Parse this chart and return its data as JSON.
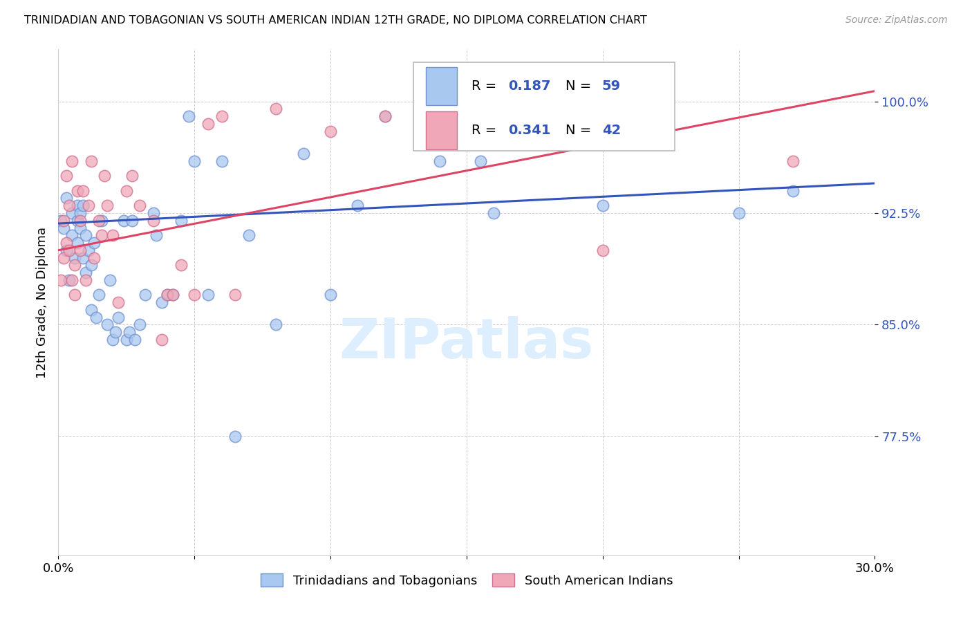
{
  "title": "TRINIDADIAN AND TOBAGONIAN VS SOUTH AMERICAN INDIAN 12TH GRADE, NO DIPLOMA CORRELATION CHART",
  "source": "Source: ZipAtlas.com",
  "ylabel": "12th Grade, No Diploma",
  "xlim": [
    0.0,
    0.3
  ],
  "ylim": [
    0.695,
    1.035
  ],
  "yticks": [
    0.775,
    0.85,
    0.925,
    1.0
  ],
  "ytick_labels": [
    "77.5%",
    "85.0%",
    "92.5%",
    "100.0%"
  ],
  "xticks": [
    0.0,
    0.05,
    0.1,
    0.15,
    0.2,
    0.25,
    0.3
  ],
  "xtick_labels": [
    "0.0%",
    "",
    "",
    "",
    "",
    "",
    "30.0%"
  ],
  "legend_blue_R": "0.187",
  "legend_blue_N": "59",
  "legend_pink_R": "0.341",
  "legend_pink_N": "42",
  "legend_label_blue": "Trinidadians and Tobagonians",
  "legend_label_pink": "South American Indians",
  "blue_color": "#a8c8f0",
  "pink_color": "#f0a8b8",
  "blue_edge_color": "#7090d0",
  "pink_edge_color": "#d07090",
  "blue_line_color": "#3355bb",
  "pink_line_color": "#dd4466",
  "label_color": "#3355bb",
  "watermark_color": "#ddeeff",
  "blue_scatter_x": [
    0.001,
    0.002,
    0.003,
    0.003,
    0.004,
    0.005,
    0.005,
    0.006,
    0.007,
    0.007,
    0.007,
    0.008,
    0.008,
    0.009,
    0.009,
    0.01,
    0.01,
    0.011,
    0.012,
    0.012,
    0.013,
    0.014,
    0.015,
    0.016,
    0.018,
    0.019,
    0.02,
    0.021,
    0.022,
    0.024,
    0.025,
    0.026,
    0.027,
    0.028,
    0.03,
    0.032,
    0.035,
    0.036,
    0.038,
    0.04,
    0.042,
    0.045,
    0.048,
    0.05,
    0.055,
    0.06,
    0.065,
    0.07,
    0.08,
    0.09,
    0.1,
    0.11,
    0.12,
    0.14,
    0.155,
    0.16,
    0.2,
    0.25,
    0.27
  ],
  "blue_scatter_y": [
    0.92,
    0.915,
    0.9,
    0.935,
    0.88,
    0.925,
    0.91,
    0.895,
    0.93,
    0.92,
    0.905,
    0.915,
    0.925,
    0.93,
    0.895,
    0.91,
    0.885,
    0.9,
    0.89,
    0.86,
    0.905,
    0.855,
    0.87,
    0.92,
    0.85,
    0.88,
    0.84,
    0.845,
    0.855,
    0.92,
    0.84,
    0.845,
    0.92,
    0.84,
    0.85,
    0.87,
    0.925,
    0.91,
    0.865,
    0.87,
    0.87,
    0.92,
    0.99,
    0.96,
    0.87,
    0.96,
    0.775,
    0.91,
    0.85,
    0.965,
    0.87,
    0.93,
    0.99,
    0.96,
    0.96,
    0.925,
    0.93,
    0.925,
    0.94
  ],
  "pink_scatter_x": [
    0.001,
    0.002,
    0.002,
    0.003,
    0.003,
    0.004,
    0.004,
    0.005,
    0.005,
    0.006,
    0.006,
    0.007,
    0.008,
    0.008,
    0.009,
    0.01,
    0.011,
    0.012,
    0.013,
    0.015,
    0.016,
    0.017,
    0.018,
    0.02,
    0.022,
    0.025,
    0.027,
    0.03,
    0.035,
    0.038,
    0.04,
    0.042,
    0.045,
    0.05,
    0.055,
    0.06,
    0.065,
    0.08,
    0.1,
    0.12,
    0.2,
    0.27
  ],
  "pink_scatter_y": [
    0.88,
    0.92,
    0.895,
    0.95,
    0.905,
    0.93,
    0.9,
    0.96,
    0.88,
    0.87,
    0.89,
    0.94,
    0.9,
    0.92,
    0.94,
    0.88,
    0.93,
    0.96,
    0.895,
    0.92,
    0.91,
    0.95,
    0.93,
    0.91,
    0.865,
    0.94,
    0.95,
    0.93,
    0.92,
    0.84,
    0.87,
    0.87,
    0.89,
    0.87,
    0.985,
    0.99,
    0.87,
    0.995,
    0.98,
    0.99,
    0.9,
    0.96
  ],
  "blue_trendline_x": [
    0.0,
    0.3
  ],
  "blue_trendline_y": [
    0.918,
    0.945
  ],
  "pink_trendline_x": [
    0.0,
    0.3
  ],
  "pink_trendline_y": [
    0.9,
    1.007
  ]
}
